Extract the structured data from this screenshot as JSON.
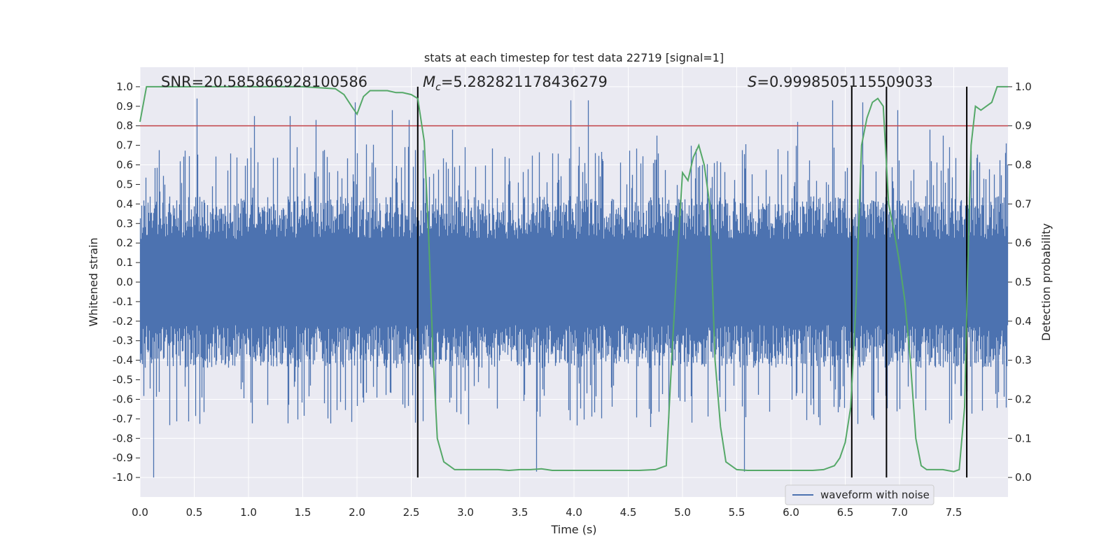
{
  "chart_data": {
    "type": "line",
    "title": "stats at each timestep for test data 22719 [signal=1]",
    "xlabel": "Time (s)",
    "ylabel_left": "Whitened strain",
    "ylabel_right": "Detection probability",
    "xlim": [
      0.0,
      8.0
    ],
    "ylim_left": [
      -1.1,
      1.1
    ],
    "ylim_right": [
      -0.05,
      1.05
    ],
    "xticks": [
      "0.0",
      "0.5",
      "1.0",
      "1.5",
      "2.0",
      "2.5",
      "3.0",
      "3.5",
      "4.0",
      "4.5",
      "5.0",
      "5.5",
      "6.0",
      "6.5",
      "7.0",
      "7.5"
    ],
    "yticks_left": [
      "1.0",
      "0.9",
      "0.8",
      "0.7",
      "0.6",
      "0.5",
      "0.4",
      "0.3",
      "0.2",
      "0.1",
      "0.0",
      "-0.1",
      "-0.2",
      "-0.3",
      "-0.4",
      "-0.5",
      "-0.6",
      "-0.7",
      "-0.8",
      "-0.9",
      "-1.0"
    ],
    "yticks_right": [
      "1.0",
      "0.9",
      "0.8",
      "0.7",
      "0.6",
      "0.5",
      "0.4",
      "0.3",
      "0.2",
      "0.1",
      "0.0"
    ],
    "annotations": {
      "snr": "SNR=20.585866928100586",
      "mc_symbol": "M",
      "mc_sub": "c",
      "mc_value": "=5.282821178436279",
      "s_symbol": "S",
      "s_value": "=0.9998505115509033"
    },
    "threshold_left": 0.8,
    "vertical_lines_x": [
      2.56,
      6.56,
      6.88,
      7.62
    ],
    "series": [
      {
        "name": "waveform with noise",
        "axis": "left",
        "color": "#4c72b0",
        "description": "whitened strain noise waveform, dense band mostly within [-0.45, 0.45], peaks up to ~0.94 and down to -1.0"
      },
      {
        "name": "detection probability",
        "axis": "right",
        "color": "#55a868",
        "x": [
          0.0,
          0.06,
          0.2,
          0.5,
          1.0,
          1.5,
          1.8,
          1.88,
          1.95,
          2.0,
          2.06,
          2.12,
          2.2,
          2.28,
          2.36,
          2.42,
          2.5,
          2.56,
          2.62,
          2.66,
          2.7,
          2.74,
          2.8,
          2.85,
          2.9,
          3.0,
          3.1,
          3.2,
          3.3,
          3.4,
          3.5,
          3.6,
          3.7,
          3.8,
          3.9,
          4.0,
          4.1,
          4.2,
          4.4,
          4.6,
          4.75,
          4.85,
          4.9,
          4.95,
          5.0,
          5.05,
          5.1,
          5.15,
          5.2,
          5.25,
          5.3,
          5.35,
          5.4,
          5.5,
          5.6,
          5.8,
          6.0,
          6.2,
          6.3,
          6.4,
          6.45,
          6.5,
          6.55,
          6.6,
          6.65,
          6.7,
          6.75,
          6.8,
          6.85,
          6.9,
          6.95,
          7.0,
          7.05,
          7.1,
          7.15,
          7.2,
          7.25,
          7.3,
          7.4,
          7.5,
          7.55,
          7.6,
          7.63,
          7.66,
          7.7,
          7.75,
          7.8,
          7.85,
          7.9,
          7.95,
          8.0
        ],
        "values": [
          0.91,
          1.0,
          1.0,
          1.0,
          1.0,
          1.0,
          0.995,
          0.98,
          0.95,
          0.93,
          0.975,
          0.99,
          0.99,
          0.99,
          0.985,
          0.985,
          0.98,
          0.97,
          0.86,
          0.62,
          0.32,
          0.1,
          0.04,
          0.03,
          0.02,
          0.02,
          0.02,
          0.02,
          0.02,
          0.018,
          0.02,
          0.02,
          0.022,
          0.018,
          0.018,
          0.018,
          0.018,
          0.018,
          0.018,
          0.018,
          0.02,
          0.03,
          0.3,
          0.55,
          0.78,
          0.76,
          0.82,
          0.85,
          0.8,
          0.7,
          0.3,
          0.13,
          0.04,
          0.02,
          0.018,
          0.018,
          0.018,
          0.018,
          0.02,
          0.03,
          0.05,
          0.09,
          0.18,
          0.45,
          0.85,
          0.92,
          0.96,
          0.97,
          0.95,
          0.7,
          0.63,
          0.55,
          0.45,
          0.3,
          0.1,
          0.03,
          0.02,
          0.02,
          0.02,
          0.015,
          0.02,
          0.18,
          0.55,
          0.85,
          0.95,
          0.94,
          0.95,
          0.96,
          1.0,
          1.0,
          1.0
        ]
      }
    ],
    "legend": {
      "label": "waveform with noise",
      "position": "lower-right"
    }
  }
}
